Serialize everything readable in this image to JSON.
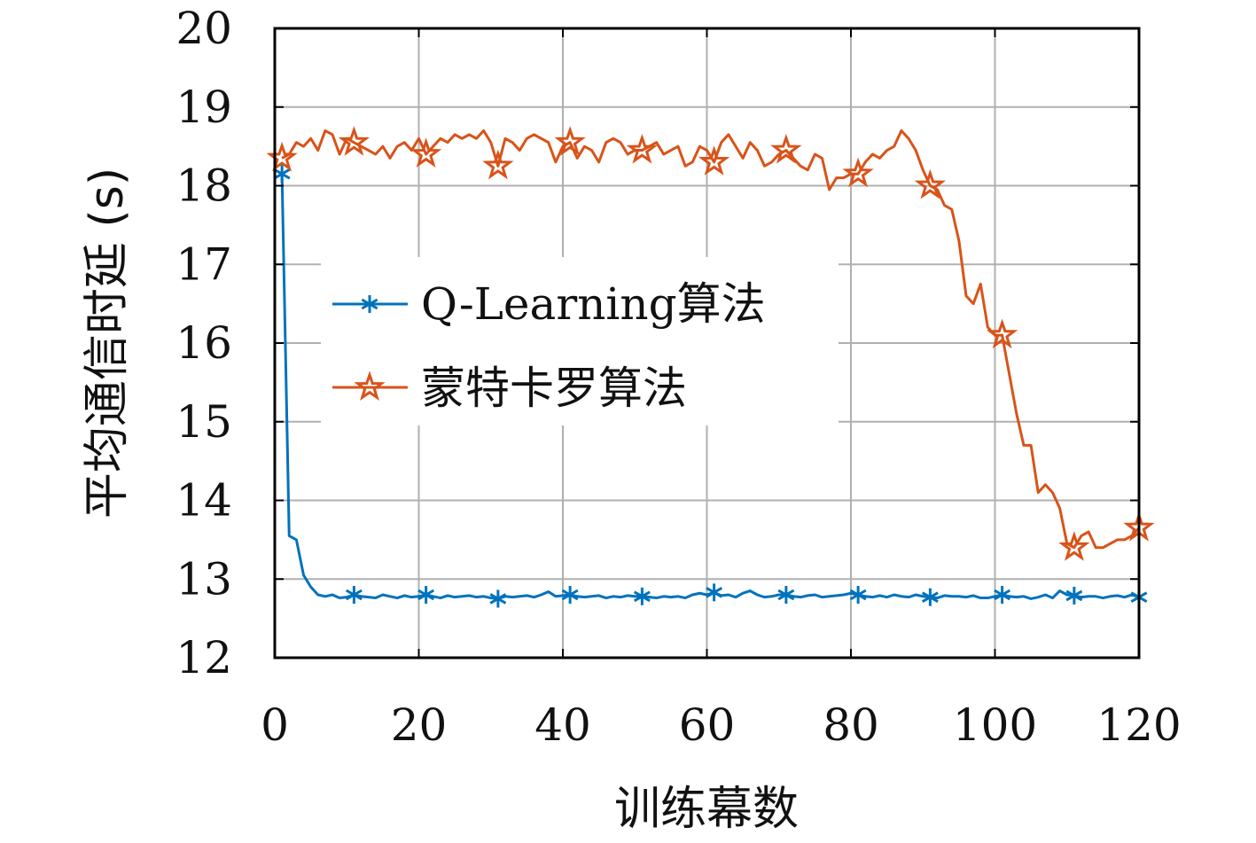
{
  "chart_data": {
    "type": "line",
    "xlabel": "训练幕数",
    "ylabel": "平均通信时延 (s)",
    "xlim": [
      0,
      120
    ],
    "ylim": [
      12,
      20
    ],
    "xticks": [
      0,
      20,
      40,
      60,
      80,
      100,
      120
    ],
    "yticks": [
      12,
      13,
      14,
      15,
      16,
      17,
      18,
      19,
      20
    ],
    "grid": true,
    "legend_position": "center-left",
    "series": [
      {
        "name": "Q-Learning算法",
        "color": "#0072bd",
        "marker": "asterisk",
        "marker_x": [
          1,
          11,
          21,
          31,
          41,
          51,
          61,
          71,
          81,
          91,
          101,
          111,
          120
        ],
        "x": [
          1,
          2,
          3,
          4,
          5,
          6,
          7,
          8,
          9,
          10,
          11,
          12,
          13,
          14,
          15,
          16,
          17,
          18,
          19,
          20,
          21,
          22,
          23,
          24,
          25,
          26,
          27,
          28,
          29,
          30,
          31,
          32,
          33,
          34,
          35,
          36,
          37,
          38,
          39,
          40,
          41,
          42,
          43,
          44,
          45,
          46,
          47,
          48,
          49,
          50,
          51,
          52,
          53,
          54,
          55,
          56,
          57,
          58,
          59,
          60,
          61,
          62,
          63,
          64,
          65,
          66,
          67,
          68,
          69,
          70,
          71,
          72,
          73,
          74,
          75,
          76,
          77,
          78,
          79,
          80,
          81,
          82,
          83,
          84,
          85,
          86,
          87,
          88,
          89,
          90,
          91,
          92,
          93,
          94,
          95,
          96,
          97,
          98,
          99,
          100,
          101,
          102,
          103,
          104,
          105,
          106,
          107,
          108,
          109,
          110,
          111,
          112,
          113,
          114,
          115,
          116,
          117,
          118,
          119,
          120
        ],
        "y": [
          18.15,
          13.55,
          13.5,
          13.05,
          12.9,
          12.8,
          12.78,
          12.8,
          12.76,
          12.77,
          12.8,
          12.78,
          12.77,
          12.76,
          12.8,
          12.78,
          12.76,
          12.79,
          12.77,
          12.78,
          12.8,
          12.78,
          12.76,
          12.79,
          12.77,
          12.78,
          12.79,
          12.77,
          12.78,
          12.76,
          12.75,
          12.78,
          12.77,
          12.78,
          12.79,
          12.77,
          12.8,
          12.84,
          12.78,
          12.79,
          12.8,
          12.78,
          12.77,
          12.78,
          12.79,
          12.76,
          12.78,
          12.77,
          12.79,
          12.78,
          12.78,
          12.77,
          12.76,
          12.78,
          12.77,
          12.78,
          12.76,
          12.8,
          12.82,
          12.8,
          12.83,
          12.79,
          12.8,
          12.77,
          12.82,
          12.85,
          12.8,
          12.77,
          12.78,
          12.8,
          12.8,
          12.78,
          12.77,
          12.79,
          12.8,
          12.77,
          12.78,
          12.79,
          12.8,
          12.82,
          12.8,
          12.78,
          12.77,
          12.79,
          12.77,
          12.8,
          12.78,
          12.77,
          12.8,
          12.78,
          12.77,
          12.76,
          12.79,
          12.78,
          12.78,
          12.77,
          12.79,
          12.76,
          12.76,
          12.78,
          12.8,
          12.78,
          12.77,
          12.78,
          12.75,
          12.77,
          12.8,
          12.76,
          12.85,
          12.8,
          12.79,
          12.77,
          12.78,
          12.78,
          12.76,
          12.78,
          12.79,
          12.77,
          12.8,
          12.77
        ]
      },
      {
        "name": "蒙特卡罗算法",
        "color": "#d95319",
        "marker": "pentagram",
        "marker_x": [
          1,
          11,
          21,
          31,
          41,
          51,
          61,
          71,
          81,
          91,
          101,
          111,
          120
        ],
        "x": [
          1,
          2,
          3,
          4,
          5,
          6,
          7,
          8,
          9,
          10,
          11,
          12,
          13,
          14,
          15,
          16,
          17,
          18,
          19,
          20,
          21,
          22,
          23,
          24,
          25,
          26,
          27,
          28,
          29,
          30,
          31,
          32,
          33,
          34,
          35,
          36,
          37,
          38,
          39,
          40,
          41,
          42,
          43,
          44,
          45,
          46,
          47,
          48,
          49,
          50,
          51,
          52,
          53,
          54,
          55,
          56,
          57,
          58,
          59,
          60,
          61,
          62,
          63,
          64,
          65,
          66,
          67,
          68,
          69,
          70,
          71,
          72,
          73,
          74,
          75,
          76,
          77,
          78,
          79,
          80,
          81,
          82,
          83,
          84,
          85,
          86,
          87,
          88,
          89,
          90,
          91,
          92,
          93,
          94,
          95,
          96,
          97,
          98,
          99,
          100,
          101,
          102,
          103,
          104,
          105,
          106,
          107,
          108,
          109,
          110,
          111,
          112,
          113,
          114,
          115,
          116,
          117,
          118,
          119,
          120
        ],
        "y": [
          18.35,
          18.4,
          18.55,
          18.5,
          18.6,
          18.45,
          18.7,
          18.65,
          18.4,
          18.6,
          18.55,
          18.5,
          18.45,
          18.4,
          18.5,
          18.35,
          18.5,
          18.55,
          18.45,
          18.6,
          18.4,
          18.5,
          18.6,
          18.55,
          18.65,
          18.6,
          18.65,
          18.6,
          18.7,
          18.55,
          18.25,
          18.6,
          18.55,
          18.45,
          18.6,
          18.65,
          18.6,
          18.55,
          18.3,
          18.5,
          18.55,
          18.35,
          18.5,
          18.45,
          18.3,
          18.55,
          18.6,
          18.55,
          18.4,
          18.45,
          18.45,
          18.5,
          18.55,
          18.4,
          18.45,
          18.5,
          18.25,
          18.3,
          18.5,
          18.45,
          18.3,
          18.55,
          18.65,
          18.5,
          18.35,
          18.55,
          18.45,
          18.25,
          18.3,
          18.4,
          18.45,
          18.35,
          18.25,
          18.2,
          18.4,
          18.35,
          17.95,
          18.1,
          18.1,
          18.15,
          18.15,
          18.3,
          18.4,
          18.35,
          18.45,
          18.5,
          18.7,
          18.6,
          18.45,
          18.2,
          18.0,
          17.95,
          17.75,
          17.7,
          17.3,
          16.6,
          16.5,
          16.75,
          16.2,
          16.1,
          16.1,
          15.6,
          15.1,
          14.7,
          14.7,
          14.1,
          14.2,
          14.1,
          13.9,
          13.45,
          13.4,
          13.55,
          13.6,
          13.4,
          13.4,
          13.45,
          13.5,
          13.5,
          13.55,
          13.65
        ]
      }
    ]
  }
}
